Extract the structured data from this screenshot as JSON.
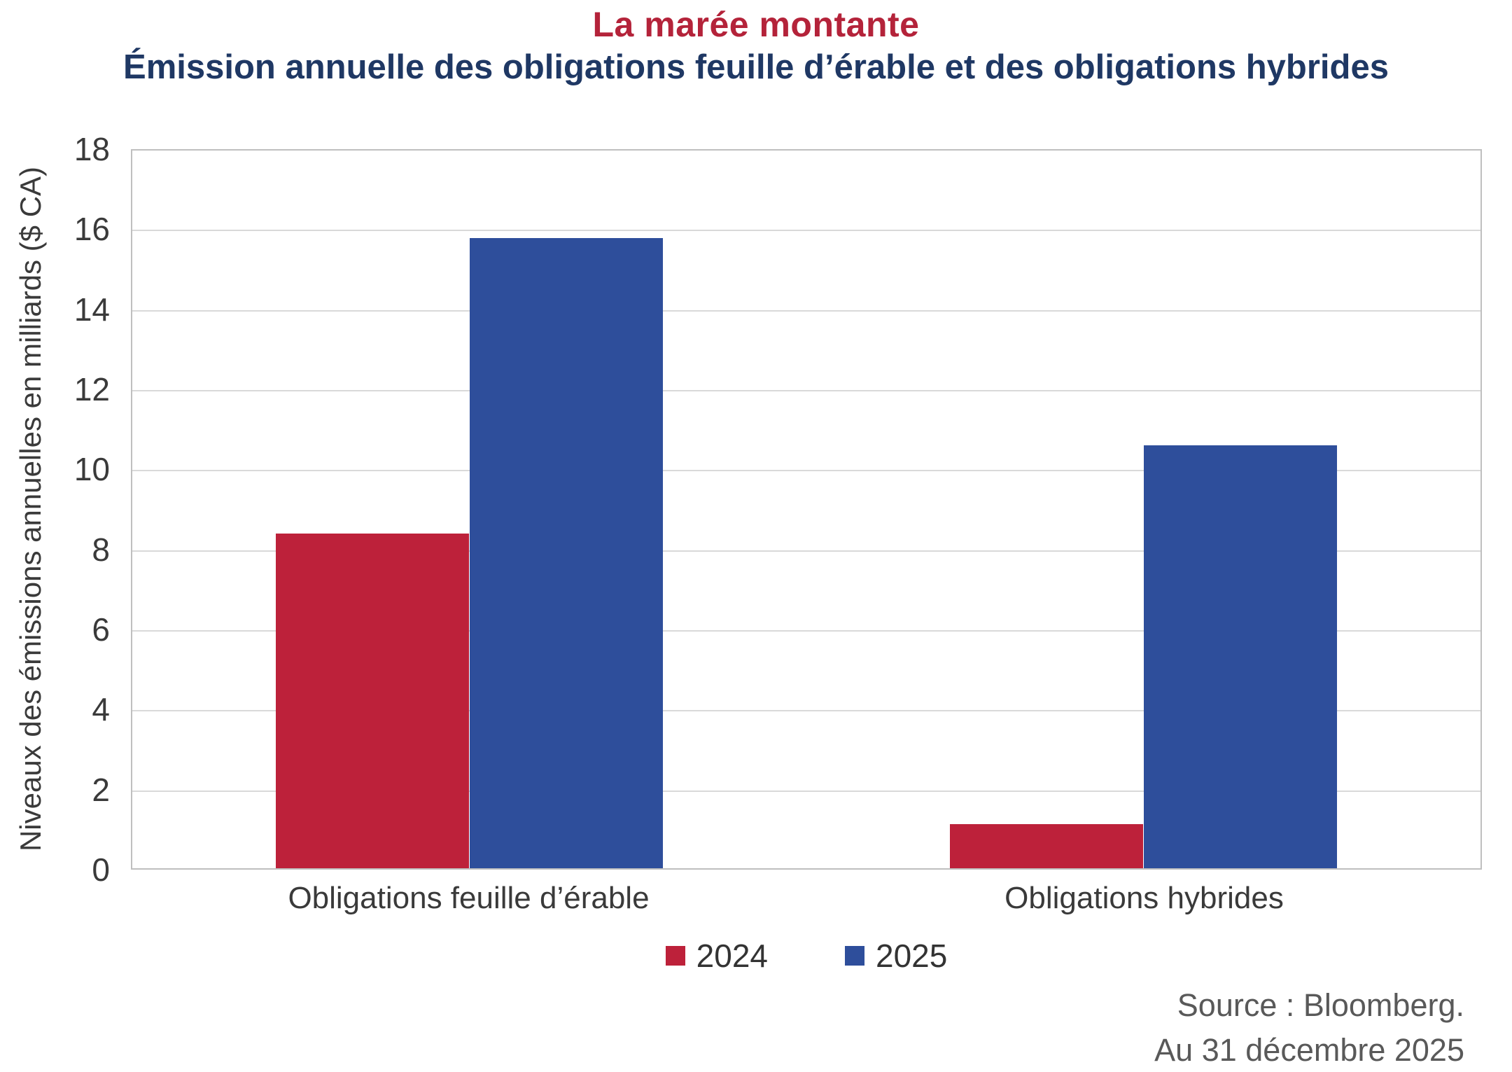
{
  "chart_data": {
    "type": "bar",
    "title": "La marée montante",
    "subtitle": "Émission annuelle des obligations feuille d’érable et des obligations hybrides",
    "ylabel": "Niveaux des émissions annuelles en milliards ($ CA)",
    "ylim": [
      0,
      18
    ],
    "ytick_step": 2,
    "ytick_labels": [
      "0",
      "2",
      "4",
      "6",
      "8",
      "10",
      "12",
      "14",
      "16",
      "18"
    ],
    "categories": [
      "Obligations feuille d’érable",
      "Obligations hybrides"
    ],
    "series": [
      {
        "name": "2024",
        "color": "#BD213A",
        "values": [
          8.4,
          1.1
        ]
      },
      {
        "name": "2025",
        "color": "#2E4E9B",
        "values": [
          15.8,
          10.6
        ]
      }
    ],
    "grid": "horizontal",
    "legend_position": "bottom",
    "source": "Source : Bloomberg.",
    "as_of": "Au 31 décembre 2025",
    "colors": {
      "title_text": "#B4233A",
      "subtitle_text": "#1F3864",
      "axis_text": "#3A3A3A",
      "source_text": "#595959",
      "gridline": "#D9D9D9",
      "plot_border": "#BFBFBF"
    }
  }
}
